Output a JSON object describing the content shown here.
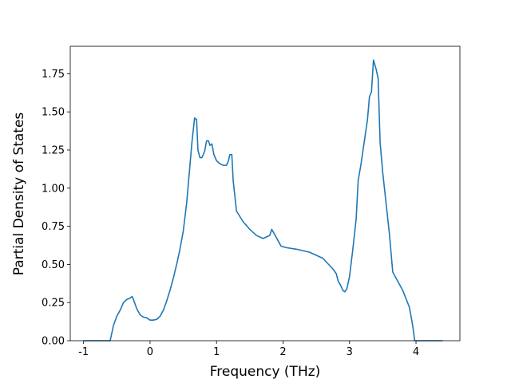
{
  "chart_data": {
    "type": "line",
    "xlabel": "Frequency (THz)",
    "ylabel": "Partial Density of States",
    "x": [
      -1,
      -0.6,
      -0.55,
      -0.5,
      -0.45,
      -0.4,
      -0.35,
      -0.3,
      -0.27,
      -0.25,
      -0.2,
      -0.15,
      -0.1,
      -0.05,
      0,
      0.05,
      0.1,
      0.15,
      0.2,
      0.25,
      0.3,
      0.35,
      0.4,
      0.45,
      0.5,
      0.55,
      0.6,
      0.63,
      0.67,
      0.7,
      0.72,
      0.75,
      0.78,
      0.82,
      0.85,
      0.88,
      0.9,
      0.93,
      0.96,
      1.0,
      1.05,
      1.1,
      1.15,
      1.18,
      1.2,
      1.23,
      1.25,
      1.3,
      1.4,
      1.5,
      1.6,
      1.7,
      1.75,
      1.8,
      1.83,
      1.87,
      1.92,
      1.97,
      2.05,
      2.2,
      2.4,
      2.6,
      2.75,
      2.8,
      2.83,
      2.87,
      2.9,
      2.93,
      2.96,
      3.0,
      3.05,
      3.1,
      3.13,
      3.17,
      3.22,
      3.27,
      3.3,
      3.33,
      3.36,
      3.4,
      3.43,
      3.46,
      3.5,
      3.55,
      3.6,
      3.65,
      3.7,
      3.8,
      3.9,
      3.95,
      3.98,
      4.1,
      4.4
    ],
    "series": [
      {
        "color": "#1f77b4",
        "values": [
          0,
          0,
          0.1,
          0.16,
          0.2,
          0.25,
          0.27,
          0.28,
          0.29,
          0.27,
          0.21,
          0.17,
          0.155,
          0.15,
          0.135,
          0.135,
          0.14,
          0.16,
          0.2,
          0.26,
          0.33,
          0.41,
          0.5,
          0.6,
          0.72,
          0.9,
          1.15,
          1.3,
          1.46,
          1.45,
          1.25,
          1.2,
          1.2,
          1.24,
          1.31,
          1.31,
          1.28,
          1.29,
          1.22,
          1.18,
          1.16,
          1.15,
          1.15,
          1.18,
          1.22,
          1.22,
          1.05,
          0.85,
          0.78,
          0.73,
          0.69,
          0.67,
          0.68,
          0.69,
          0.73,
          0.7,
          0.66,
          0.62,
          0.61,
          0.6,
          0.58,
          0.54,
          0.47,
          0.44,
          0.39,
          0.36,
          0.33,
          0.32,
          0.34,
          0.42,
          0.6,
          0.8,
          1.05,
          1.15,
          1.3,
          1.45,
          1.6,
          1.63,
          1.84,
          1.78,
          1.72,
          1.3,
          1.1,
          0.9,
          0.7,
          0.45,
          0.41,
          0.33,
          0.22,
          0.1,
          0,
          0,
          0
        ]
      }
    ],
    "xlim": [
      -1.2,
      4.66
    ],
    "ylim": [
      0,
      1.93
    ],
    "xticks": [
      -1,
      0,
      1,
      2,
      3,
      4
    ],
    "yticks": [
      {
        "value": 0,
        "label": "0.00"
      },
      {
        "value": 0.25,
        "label": "0.25"
      },
      {
        "value": 0.5,
        "label": "0.50"
      },
      {
        "value": 0.75,
        "label": "0.75"
      },
      {
        "value": 1,
        "label": "1.00"
      },
      {
        "value": 1.25,
        "label": "1.25"
      },
      {
        "value": 1.5,
        "label": "1.50"
      },
      {
        "value": 1.75,
        "label": "1.75"
      }
    ]
  }
}
